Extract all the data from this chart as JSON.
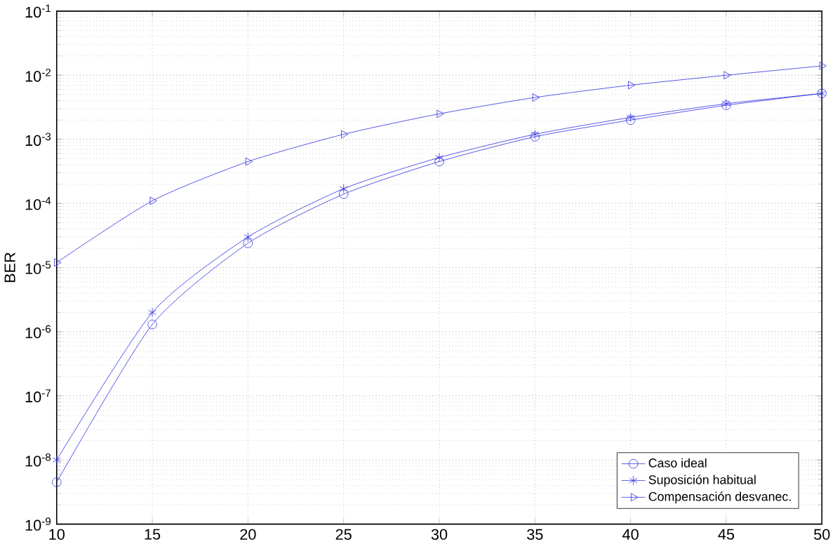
{
  "chart_data": {
    "type": "line",
    "ylabel": "BER",
    "x": [
      10,
      15,
      20,
      25,
      30,
      35,
      40,
      45,
      50
    ],
    "series": [
      {
        "name": "Caso ideal",
        "color": "#2a2ae0",
        "marker": "circle",
        "values": [
          4.5e-09,
          1.3e-06,
          2.4e-05,
          0.00014,
          0.00045,
          0.0011,
          0.002,
          0.0034,
          0.0052
        ]
      },
      {
        "name": "Suposición habitual",
        "color": "#2a2ae0",
        "marker": "cross",
        "values": [
          1e-08,
          2e-06,
          3e-05,
          0.00017,
          0.00052,
          0.0012,
          0.0022,
          0.0036,
          0.0052
        ]
      },
      {
        "name": "Compensación desvanec.",
        "color": "#2a2ae0",
        "marker": "triangle",
        "values": [
          1.2e-05,
          0.00011,
          0.00045,
          0.0012,
          0.0025,
          0.0045,
          0.007,
          0.01,
          0.014
        ]
      }
    ],
    "log": "y",
    "xlim": [
      10,
      50
    ],
    "ylim": [
      1e-09,
      0.1
    ],
    "xticks": [
      10,
      15,
      20,
      25,
      30,
      35,
      40,
      45,
      50
    ],
    "yticks": [
      {
        "value": 1e-09,
        "label": "10$^{-9}$"
      },
      {
        "value": 1e-08,
        "label": "10$^{-8}$"
      },
      {
        "value": 1e-07,
        "label": "10$^{-7}$"
      },
      {
        "value": 1e-06,
        "label": "10$^{-6}$"
      },
      {
        "value": 1e-05,
        "label": "10$^{-5}$"
      },
      {
        "value": 0.0001,
        "label": "10$^{-4}$"
      },
      {
        "value": 0.001,
        "label": "10$^{-3}$"
      },
      {
        "value": 0.01,
        "label": "10$^{-2}$"
      },
      {
        "value": 0.1,
        "label": "10$^{-1}$"
      }
    ],
    "grid": true,
    "legend": "bottom right",
    "line_style": "solid"
  }
}
